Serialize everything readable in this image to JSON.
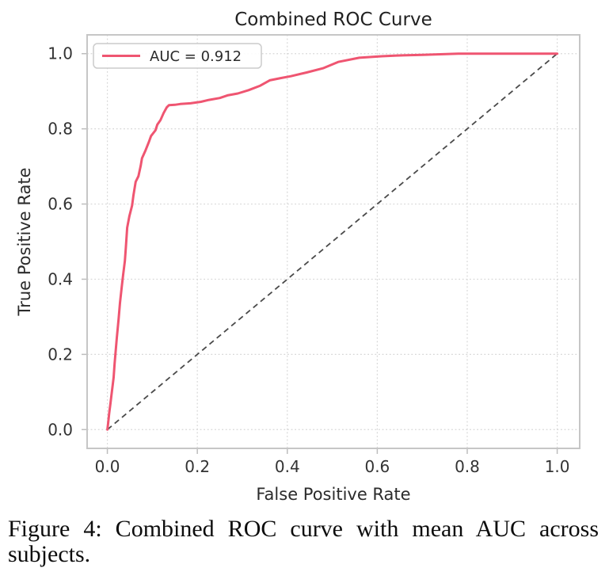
{
  "figure": {
    "caption_lines": [
      "Figure 4: Combined ROC curve with mean AUC across",
      "subjects."
    ]
  },
  "chart_data": {
    "type": "line",
    "title": "Combined ROC Curve",
    "xlabel": "False Positive Rate",
    "ylabel": "True Positive Rate",
    "xlim": [
      -0.045,
      1.05
    ],
    "ylim": [
      -0.05,
      1.05
    ],
    "x_ticks": [
      0.0,
      0.2,
      0.4,
      0.6,
      0.8,
      1.0
    ],
    "y_ticks": [
      0.0,
      0.2,
      0.4,
      0.6,
      0.8,
      1.0
    ],
    "x_tick_labels": [
      "0.0",
      "0.2",
      "0.4",
      "0.6",
      "0.8",
      "1.0"
    ],
    "y_tick_labels": [
      "0.0",
      "0.2",
      "0.4",
      "0.6",
      "0.8",
      "1.0"
    ],
    "grid": true,
    "grid_style": "dotted",
    "legend_position": "upper left",
    "colors": {
      "roc_curve": "#ef5571",
      "diagonal": "#4a4a4a",
      "grid": "#d6d6d6",
      "spine": "#c6c6c6",
      "tick_text": "#333333",
      "legend_border": "#cccccc"
    },
    "series": [
      {
        "name": "ROC curve",
        "legend_label": "AUC = 0.912",
        "auc": 0.912,
        "points": [
          [
            0.0,
            0.0
          ],
          [
            0.002,
            0.02
          ],
          [
            0.004,
            0.042
          ],
          [
            0.007,
            0.07
          ],
          [
            0.009,
            0.091
          ],
          [
            0.012,
            0.12
          ],
          [
            0.014,
            0.139
          ],
          [
            0.016,
            0.175
          ],
          [
            0.019,
            0.217
          ],
          [
            0.021,
            0.244
          ],
          [
            0.025,
            0.295
          ],
          [
            0.028,
            0.337
          ],
          [
            0.032,
            0.379
          ],
          [
            0.035,
            0.41
          ],
          [
            0.039,
            0.449
          ],
          [
            0.041,
            0.484
          ],
          [
            0.044,
            0.537
          ],
          [
            0.049,
            0.568
          ],
          [
            0.055,
            0.596
          ],
          [
            0.058,
            0.623
          ],
          [
            0.063,
            0.659
          ],
          [
            0.069,
            0.674
          ],
          [
            0.074,
            0.701
          ],
          [
            0.077,
            0.722
          ],
          [
            0.085,
            0.743
          ],
          [
            0.092,
            0.764
          ],
          [
            0.097,
            0.781
          ],
          [
            0.107,
            0.796
          ],
          [
            0.111,
            0.811
          ],
          [
            0.118,
            0.823
          ],
          [
            0.125,
            0.842
          ],
          [
            0.132,
            0.857
          ],
          [
            0.137,
            0.863
          ],
          [
            0.15,
            0.864
          ],
          [
            0.162,
            0.866
          ],
          [
            0.185,
            0.868
          ],
          [
            0.208,
            0.872
          ],
          [
            0.226,
            0.877
          ],
          [
            0.25,
            0.882
          ],
          [
            0.267,
            0.889
          ],
          [
            0.29,
            0.894
          ],
          [
            0.314,
            0.903
          ],
          [
            0.34,
            0.915
          ],
          [
            0.361,
            0.929
          ],
          [
            0.385,
            0.935
          ],
          [
            0.408,
            0.94
          ],
          [
            0.443,
            0.95
          ],
          [
            0.479,
            0.961
          ],
          [
            0.513,
            0.978
          ],
          [
            0.56,
            0.989
          ],
          [
            0.61,
            0.993
          ],
          [
            0.643,
            0.995
          ],
          [
            0.7,
            0.997
          ],
          [
            0.78,
            1.0
          ],
          [
            0.9,
            1.0
          ],
          [
            1.0,
            1.0
          ]
        ]
      }
    ],
    "reference_line": {
      "name": "chance diagonal",
      "style": "dashed",
      "points": [
        [
          0.0,
          0.0
        ],
        [
          1.0,
          1.0
        ]
      ]
    }
  }
}
